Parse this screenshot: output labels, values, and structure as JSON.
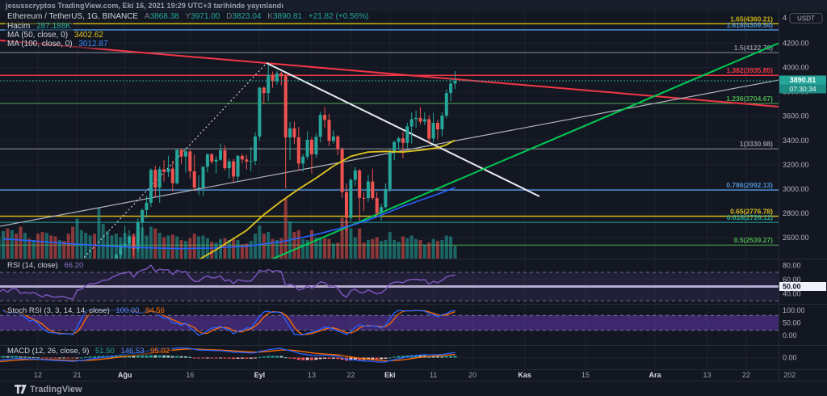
{
  "publish_bar": {
    "text": "jesusscryptos TradingView.com, Eki 16, 2021 19:29 UTC+3 tarihinde yayınlandı"
  },
  "legend": {
    "symbol": "Ethereum / TetherUS, 1G, BINANCE",
    "ohlc": {
      "o_k": "A",
      "o_v": "3868.38",
      "h_k": "Y",
      "h_v": "3971.00",
      "l_k": "D",
      "l_v": "3823.04",
      "c_k": "K",
      "c_v": "3890.81"
    },
    "change": "+21.82 (+0.56%)",
    "volume_label": "Hacim",
    "volume_value": "287.188K",
    "ma50_label": "MA (50, close, 0)",
    "ma50_value": "3402.62",
    "ma100_label": "MA (100, close, 0)",
    "ma100_value": "3012.87"
  },
  "indicators": {
    "rsi": {
      "label": "RSI (14, close)",
      "value": "66.20",
      "ticks": [
        [
          80,
          "80.00"
        ],
        [
          60,
          "60.00"
        ],
        [
          40,
          "40.00"
        ]
      ],
      "mid_badge": "50.00"
    },
    "stoch": {
      "label": "Stoch RSI (3, 3, 14, 14, close)",
      "k": "100.00",
      "d": "94.56",
      "ticks": [
        [
          100,
          "100.00"
        ],
        [
          50,
          "50.00"
        ],
        [
          0,
          "0.00"
        ]
      ]
    },
    "macd": {
      "label": "MACD (12, 26, close, 9)",
      "hist": "51.50",
      "macd": "146.53",
      "signal": "95.02",
      "ticks": [
        [
          0,
          "0.00"
        ]
      ]
    }
  },
  "price_axis": {
    "top_tick_label": "4",
    "unit": "USDT",
    "ticks": [
      4200,
      4000,
      3800,
      3600,
      3400,
      3200,
      3000,
      2800,
      2600
    ],
    "last_price": "3890.81",
    "countdown": "07:30:34"
  },
  "time_axis": {
    "ticks": [
      {
        "label": "12",
        "day": 8
      },
      {
        "label": "21",
        "day": 17
      },
      {
        "label": "Ağu",
        "day": 28,
        "major": true
      },
      {
        "label": "16",
        "day": 43
      },
      {
        "label": "Eyl",
        "day": 59,
        "major": true
      },
      {
        "label": "13",
        "day": 71
      },
      {
        "label": "22",
        "day": 80
      },
      {
        "label": "Eki",
        "day": 89,
        "major": true
      },
      {
        "label": "11",
        "day": 99
      },
      {
        "label": "20",
        "day": 108
      },
      {
        "label": "Kas",
        "day": 120,
        "major": true
      },
      {
        "label": "15",
        "day": 134
      },
      {
        "label": "Ara",
        "day": 150,
        "major": true
      },
      {
        "label": "13",
        "day": 162
      },
      {
        "label": "22",
        "day": 171
      },
      {
        "label": "202",
        "day": 181
      }
    ]
  },
  "fib_levels": [
    {
      "label": "1.65(4360.21)",
      "price": 4360.21,
      "color": "#c9b313",
      "width": 1.5
    },
    {
      "label": "1.618(4309.54)",
      "price": 4309.54,
      "color": "#4f8fd0",
      "width": 1.5
    },
    {
      "label": "1.5(4122.70)",
      "price": 4122.7,
      "color": "#8a8e99",
      "width": 1
    },
    {
      "label": "1.382(3935.85)",
      "price": 3935.85,
      "color": "#f23645",
      "width": 1.5
    },
    {
      "label": "1.236(3704.67)",
      "price": 3704.67,
      "color": "#4caf50",
      "width": 1
    },
    {
      "label": "1(3330.98)",
      "price": 3330.98,
      "color": "#9598a1",
      "width": 1
    },
    {
      "label": "0.786(2992.13)",
      "price": 2992.13,
      "color": "#4f8fd0",
      "width": 1.5
    },
    {
      "label": "0.65(2776.78)",
      "price": 2776.78,
      "color": "#d3bd1d",
      "width": 1.5
    },
    {
      "label": "0.618(2726.11)",
      "price": 2726.11,
      "color": "#26a69a",
      "width": 1
    },
    {
      "label": "0.5(2539.27)",
      "price": 2539.27,
      "color": "#4caf50",
      "width": 1
    }
  ],
  "trendlines": [
    {
      "name": "descending-resistance",
      "color": "#f23645",
      "width": 2,
      "from": [
        -0.74,
        4223
      ],
      "to": [
        178.44,
        3678
      ]
    },
    {
      "name": "ascending-channel-line",
      "color": "#b2b5be",
      "width": 1.2,
      "from": [
        -0.74,
        2694
      ],
      "to": [
        178.44,
        3897
      ]
    },
    {
      "name": "broken-support-dotted",
      "color": "#e8eaef",
      "width": 1,
      "dash": "2 3",
      "from": [
        18.6,
        2438
      ],
      "to": [
        60.6,
        4037
      ]
    },
    {
      "name": "lower-high-trendline",
      "color": "#e8eaef",
      "width": 2,
      "from": [
        60.6,
        4037
      ],
      "to": [
        123.4,
        2940
      ]
    },
    {
      "name": "ascending-support",
      "color": "#00c853",
      "width": 2,
      "from": [
        16,
        1725
      ],
      "to": [
        178.44,
        4200
      ]
    }
  ],
  "footer": {
    "brand": "TradingView"
  },
  "colors": {
    "background": "#131722",
    "up": "#26a69a",
    "down": "#ef5350",
    "vol_up": "rgba(38,166,154,0.55)",
    "vol_down": "rgba(239,83,80,0.55)",
    "ma50": "#e0c51c",
    "ma100": "#2962ff",
    "rsi": "#7e57c2",
    "rsi_mid": "#cfc5e8",
    "stoch_k": "#2962ff",
    "stoch_d": "#ff6d00",
    "macd_line": "#2962ff",
    "signal_line": "#ff6d00",
    "hist_up": "#26a69a",
    "hist_up_light": "#9bd0ca",
    "hist_dn": "#ef5350",
    "hist_dn_light": "#f5b8b8",
    "grid": "rgba(240,243,250,0.055)",
    "axis_text": "#b2b5be",
    "divider": "#262b38",
    "badge": "#26a69a",
    "badge_dark": "#1d8d84",
    "band_fill": "rgba(126,87,194,0.14)",
    "stoch_fill": "rgba(103,58,183,0.5)",
    "dashed": "rgba(200,195,220,0.5)"
  },
  "chart_data": {
    "type": "candlestick",
    "symbol": "Ethereum / TetherUS",
    "exchange": "BINANCE",
    "interval": "1G",
    "start_date": "2021-06-14",
    "lead_in": 20,
    "last_close": 3890.81,
    "candles": [
      [
        2509,
        2606,
        2460,
        2581
      ],
      [
        2581,
        2640,
        2490,
        2519
      ],
      [
        2519,
        2560,
        2353,
        2367
      ],
      [
        2367,
        2460,
        2310,
        2373
      ],
      [
        2373,
        2394,
        2158,
        2232
      ],
      [
        2232,
        2280,
        2110,
        2164
      ],
      [
        2164,
        2280,
        2048,
        2230
      ],
      [
        2230,
        2250,
        1872,
        1886
      ],
      [
        1886,
        2030,
        1700,
        1968
      ],
      [
        1968,
        2055,
        1880,
        1989
      ],
      [
        1989,
        2038,
        1888,
        1969
      ],
      [
        1969,
        2020,
        1760,
        1809
      ],
      [
        1809,
        1850,
        1717,
        1830
      ],
      [
        1830,
        1995,
        1804,
        1984
      ],
      [
        1984,
        2145,
        1960,
        2083
      ],
      [
        2083,
        2253,
        2060,
        2166
      ],
      [
        2166,
        2287,
        2080,
        2275
      ],
      [
        2275,
        2290,
        2088,
        2166
      ],
      [
        2166,
        2190,
        2075,
        2109
      ],
      [
        2109,
        2240,
        2100,
        2226
      ],
      [
        2226,
        2390,
        2190,
        2322
      ],
      [
        2322,
        2330,
        2150,
        2198
      ],
      [
        2198,
        2350,
        2190,
        2322
      ],
      [
        2322,
        2409,
        2291,
        2316
      ],
      [
        2316,
        2325,
        2084,
        2115
      ],
      [
        2115,
        2189,
        2047,
        2146
      ],
      [
        2146,
        2195,
        2060,
        2110
      ],
      [
        2110,
        2174,
        2081,
        2140
      ],
      [
        2140,
        2170,
        1990,
        2031
      ],
      [
        2031,
        2056,
        1918,
        1940
      ],
      [
        1940,
        2018,
        1865,
        1995
      ],
      [
        1995,
        2013,
        1885,
        1919
      ],
      [
        1919,
        1951,
        1849,
        1877
      ],
      [
        1877,
        1920,
        1852,
        1900
      ],
      [
        1900,
        1993,
        1880,
        1891
      ],
      [
        1891,
        1917,
        1805,
        1818
      ],
      [
        1818,
        1836,
        1718,
        1786
      ],
      [
        1786,
        2035,
        1747,
        1996
      ],
      [
        1996,
        2075,
        1947,
        2025
      ],
      [
        2025,
        2144,
        2007,
        2124
      ],
      [
        2124,
        2204,
        2081,
        2190
      ],
      [
        2190,
        2239,
        2087,
        2189
      ],
      [
        2189,
        2430,
        2163,
        2231
      ],
      [
        2231,
        2325,
        2150,
        2299
      ],
      [
        2299,
        2337,
        2240,
        2300
      ],
      [
        2300,
        2399,
        2277,
        2385
      ],
      [
        2385,
        2465,
        2322,
        2460
      ],
      [
        2460,
        2549,
        2370,
        2531
      ],
      [
        2531,
        2699,
        2505,
        2552
      ],
      [
        2552,
        2662,
        2508,
        2608
      ],
      [
        2608,
        2626,
        2451,
        2506
      ],
      [
        2506,
        2760,
        2477,
        2725
      ],
      [
        2725,
        2840,
        2529,
        2827
      ],
      [
        2827,
        2945,
        2760,
        2888
      ],
      [
        2888,
        3170,
        2852,
        3158
      ],
      [
        3158,
        3192,
        2935,
        3012
      ],
      [
        3012,
        3185,
        2888,
        3163
      ],
      [
        3163,
        3238,
        3062,
        3141
      ],
      [
        3141,
        3274,
        3100,
        3168
      ],
      [
        3168,
        3233,
        2982,
        3048
      ],
      [
        3048,
        3327,
        3038,
        3323
      ],
      [
        3323,
        3335,
        3205,
        3268
      ],
      [
        3268,
        3339,
        3135,
        3310
      ],
      [
        3310,
        3324,
        3087,
        3146
      ],
      [
        3146,
        3283,
        2984,
        3012
      ],
      [
        3012,
        3113,
        2950,
        3013
      ],
      [
        3013,
        3189,
        2947,
        3183
      ],
      [
        3183,
        3292,
        3136,
        3286
      ],
      [
        3286,
        3297,
        3207,
        3226
      ],
      [
        3226,
        3274,
        3127,
        3241
      ],
      [
        3241,
        3374,
        3231,
        3320
      ],
      [
        3320,
        3359,
        3154,
        3172
      ],
      [
        3172,
        3247,
        3087,
        3228
      ],
      [
        3228,
        3248,
        3057,
        3103
      ],
      [
        3103,
        3282,
        3063,
        3273
      ],
      [
        3273,
        3288,
        3212,
        3244
      ],
      [
        3244,
        3283,
        3159,
        3227
      ],
      [
        3227,
        3346,
        3146,
        3232
      ],
      [
        3232,
        3467,
        3197,
        3433
      ],
      [
        3433,
        3838,
        3403,
        3835
      ],
      [
        3835,
        3843,
        3698,
        3790
      ],
      [
        3790,
        4027,
        3723,
        3940
      ],
      [
        3940,
        3968,
        3833,
        3887
      ],
      [
        3887,
        3972,
        3858,
        3952
      ],
      [
        3952,
        3966,
        3853,
        3928
      ],
      [
        3928,
        3946,
        3005,
        3425
      ],
      [
        3425,
        3552,
        3242,
        3500
      ],
      [
        3500,
        3554,
        3370,
        3425
      ],
      [
        3425,
        3512,
        3151,
        3210
      ],
      [
        3210,
        3290,
        3144,
        3267
      ],
      [
        3267,
        3475,
        3244,
        3406
      ],
      [
        3406,
        3428,
        3128,
        3286
      ],
      [
        3286,
        3461,
        3258,
        3430
      ],
      [
        3430,
        3636,
        3383,
        3610
      ],
      [
        3610,
        3675,
        3505,
        3569
      ],
      [
        3569,
        3620,
        3355,
        3396
      ],
      [
        3396,
        3483,
        3373,
        3433
      ],
      [
        3433,
        3443,
        3280,
        3327
      ],
      [
        3327,
        3343,
        2928,
        2975
      ],
      [
        2975,
        3044,
        2651,
        2762
      ],
      [
        2762,
        3089,
        2733,
        3076
      ],
      [
        3076,
        3184,
        3028,
        3154
      ],
      [
        3154,
        3164,
        2740,
        2928
      ],
      [
        2928,
        2975,
        2819,
        2925
      ],
      [
        2925,
        3117,
        2893,
        3062
      ],
      [
        3062,
        3168,
        2912,
        2926
      ],
      [
        2926,
        2975,
        2783,
        2803
      ],
      [
        2803,
        2879,
        2742,
        2852
      ],
      [
        2852,
        3046,
        2839,
        3000
      ],
      [
        3000,
        3329,
        2975,
        3308
      ],
      [
        3308,
        3396,
        3240,
        3388
      ],
      [
        3388,
        3428,
        3323,
        3418
      ],
      [
        3418,
        3472,
        3255,
        3380
      ],
      [
        3380,
        3545,
        3336,
        3515
      ],
      [
        3515,
        3629,
        3374,
        3575
      ],
      [
        3575,
        3647,
        3505,
        3586
      ],
      [
        3586,
        3675,
        3529,
        3555
      ],
      [
        3555,
        3630,
        3525,
        3575
      ],
      [
        3575,
        3610,
        3373,
        3415
      ],
      [
        3415,
        3626,
        3378,
        3545
      ],
      [
        3545,
        3570,
        3408,
        3492
      ],
      [
        3492,
        3631,
        3434,
        3605
      ],
      [
        3605,
        3822,
        3584,
        3790
      ],
      [
        3790,
        3918,
        3724,
        3868
      ],
      [
        3868.38,
        3971,
        3823.04,
        3890.81
      ]
    ],
    "volume_k": [
      700,
      650,
      600,
      580,
      620,
      550,
      520,
      900,
      780,
      620,
      560,
      800,
      720,
      660,
      600,
      560,
      540,
      520,
      500,
      480,
      620,
      680,
      640,
      560,
      720,
      580,
      450,
      420,
      560,
      600,
      580,
      520,
      500,
      420,
      400,
      560,
      720,
      900,
      640,
      580,
      520,
      560,
      1150,
      780,
      620,
      520,
      560,
      480,
      580,
      520,
      560,
      620,
      700,
      520,
      720,
      680,
      580,
      480,
      520,
      540,
      500,
      420,
      400,
      460,
      560,
      500,
      520,
      460,
      380,
      360,
      440,
      460,
      420,
      440,
      420,
      320,
      340,
      400,
      560,
      740,
      560,
      600,
      440,
      420,
      460,
      1350,
      840,
      600,
      640,
      440,
      420,
      640,
      480,
      480,
      460,
      440,
      340,
      360,
      920,
      880,
      680,
      480,
      680,
      360,
      420,
      440,
      480,
      400,
      420,
      600,
      420,
      380,
      500,
      460,
      520,
      440,
      420,
      320,
      360,
      440,
      400,
      420,
      520,
      500,
      287.188
    ],
    "ma50_points": [
      [
        44,
        2400
      ],
      [
        48,
        2480
      ],
      [
        52,
        2570
      ],
      [
        56,
        2660
      ],
      [
        60,
        2790
      ],
      [
        64,
        2900
      ],
      [
        68,
        3000
      ],
      [
        72,
        3090
      ],
      [
        76,
        3190
      ],
      [
        80,
        3270
      ],
      [
        84,
        3305
      ],
      [
        88,
        3310
      ],
      [
        92,
        3305
      ],
      [
        96,
        3320
      ],
      [
        100,
        3340
      ],
      [
        102,
        3365
      ],
      [
        104,
        3402.62
      ]
    ],
    "ma100_points": [
      [
        0,
        2590
      ],
      [
        8,
        2570
      ],
      [
        16,
        2548
      ],
      [
        24,
        2532
      ],
      [
        32,
        2518
      ],
      [
        40,
        2510
      ],
      [
        48,
        2514
      ],
      [
        56,
        2530
      ],
      [
        64,
        2566
      ],
      [
        72,
        2626
      ],
      [
        80,
        2700
      ],
      [
        84,
        2745
      ],
      [
        88,
        2800
      ],
      [
        92,
        2858
      ],
      [
        96,
        2908
      ],
      [
        100,
        2958
      ],
      [
        104,
        3012.87
      ]
    ]
  }
}
